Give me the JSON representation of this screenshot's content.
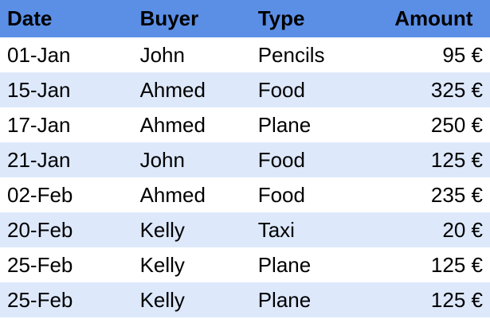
{
  "table": {
    "headers": [
      "Date",
      "Buyer",
      "Type",
      "Amount"
    ],
    "rows": [
      [
        "01-Jan",
        "John",
        "Pencils",
        "95 €"
      ],
      [
        "15-Jan",
        "Ahmed",
        "Food",
        "325 €"
      ],
      [
        "17-Jan",
        "Ahmed",
        "Plane",
        "250 €"
      ],
      [
        "21-Jan",
        "John",
        "Food",
        "125 €"
      ],
      [
        "02-Feb",
        "Ahmed",
        "Food",
        "235 €"
      ],
      [
        "20-Feb",
        "Kelly",
        "Taxi",
        "20 €"
      ],
      [
        "25-Feb",
        "Kelly",
        "Plane",
        "125 €"
      ],
      [
        "25-Feb",
        "Kelly",
        "Plane",
        "125 €"
      ]
    ]
  },
  "colors": {
    "header_bg": "#5b8fe6",
    "band_bg": "#dde8fb",
    "row_bg": "#ffffff"
  }
}
